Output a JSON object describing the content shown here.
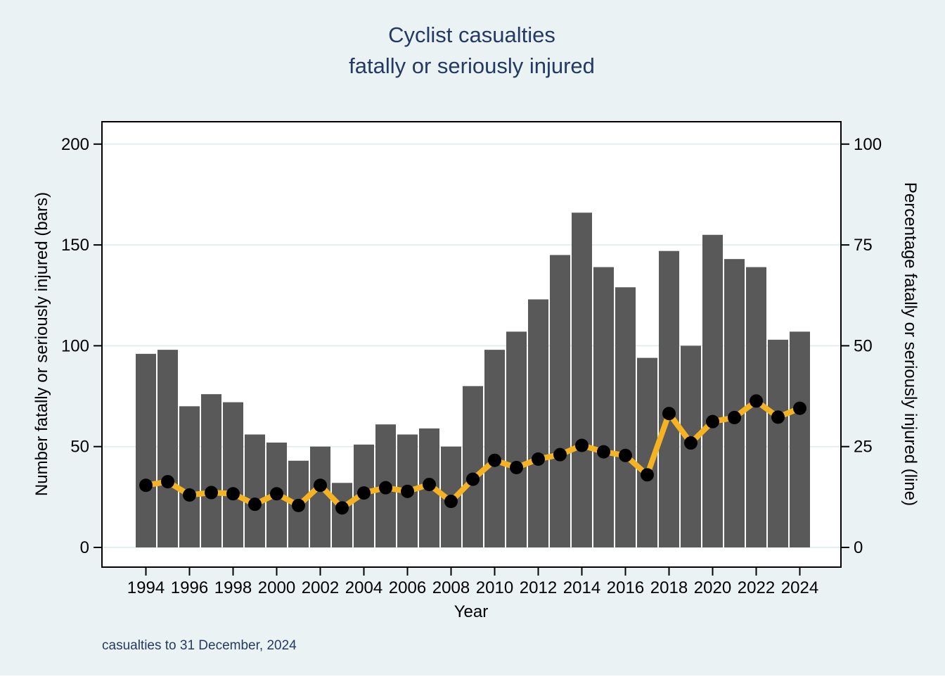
{
  "figure": {
    "title_line1": "Cyclist casualties",
    "title_line2": "fatally or seriously injured",
    "caption": "casualties to 31 December, 2024"
  },
  "chart_data": {
    "type": "bar+line",
    "x": [
      1994,
      1995,
      1996,
      1997,
      1998,
      1999,
      2000,
      2001,
      2002,
      2003,
      2004,
      2005,
      2006,
      2007,
      2008,
      2009,
      2010,
      2011,
      2012,
      2013,
      2014,
      2015,
      2016,
      2017,
      2018,
      2019,
      2020,
      2021,
      2022,
      2023,
      2024
    ],
    "series": [
      {
        "name": "Number fatally or seriously injured (bars)",
        "type": "bar",
        "axis": "left",
        "values": [
          96,
          98,
          70,
          76,
          72,
          56,
          52,
          43,
          50,
          32,
          51,
          61,
          56,
          59,
          50,
          80,
          98,
          107,
          123,
          145,
          166,
          139,
          129,
          94,
          147,
          100,
          155,
          143,
          139,
          103,
          107
        ]
      },
      {
        "name": "Percentage fatally or seriously injured (line)",
        "type": "line",
        "axis": "right",
        "values": [
          15.4,
          16.3,
          13.0,
          13.6,
          13.3,
          10.7,
          13.3,
          10.4,
          15.4,
          9.8,
          13.5,
          14.8,
          13.9,
          15.6,
          11.4,
          16.9,
          21.6,
          19.8,
          21.9,
          23.0,
          25.3,
          23.7,
          22.8,
          18.0,
          33.2,
          25.9,
          31.2,
          32.2,
          36.3,
          32.3,
          34.5
        ]
      }
    ],
    "title": "Cyclist casualties fatally or seriously injured",
    "xlabel": "Year",
    "ylabel_left": "Number fatally or seriously injured (bars)",
    "ylabel_right": "Percentage fatally or seriously injured (line)",
    "xticks": [
      1994,
      1996,
      1998,
      2000,
      2002,
      2004,
      2006,
      2008,
      2010,
      2012,
      2014,
      2016,
      2018,
      2020,
      2022,
      2024
    ],
    "yticks_left": [
      0,
      50,
      100,
      150,
      200
    ],
    "yticks_right": [
      0,
      25,
      50,
      75,
      100
    ],
    "ylim_left": [
      0,
      200
    ],
    "ylim_right": [
      0,
      100
    ],
    "grid": true,
    "legend_position": "none",
    "colors": {
      "background": "#EAF2F3",
      "plot_background": "#FFFFFF",
      "gridline": "#E3EEF1",
      "bar": "#595959",
      "line": "#F5B324",
      "marker": "#000000",
      "axis": "#000000",
      "title": "#243A63",
      "caption": "#243A63"
    }
  }
}
